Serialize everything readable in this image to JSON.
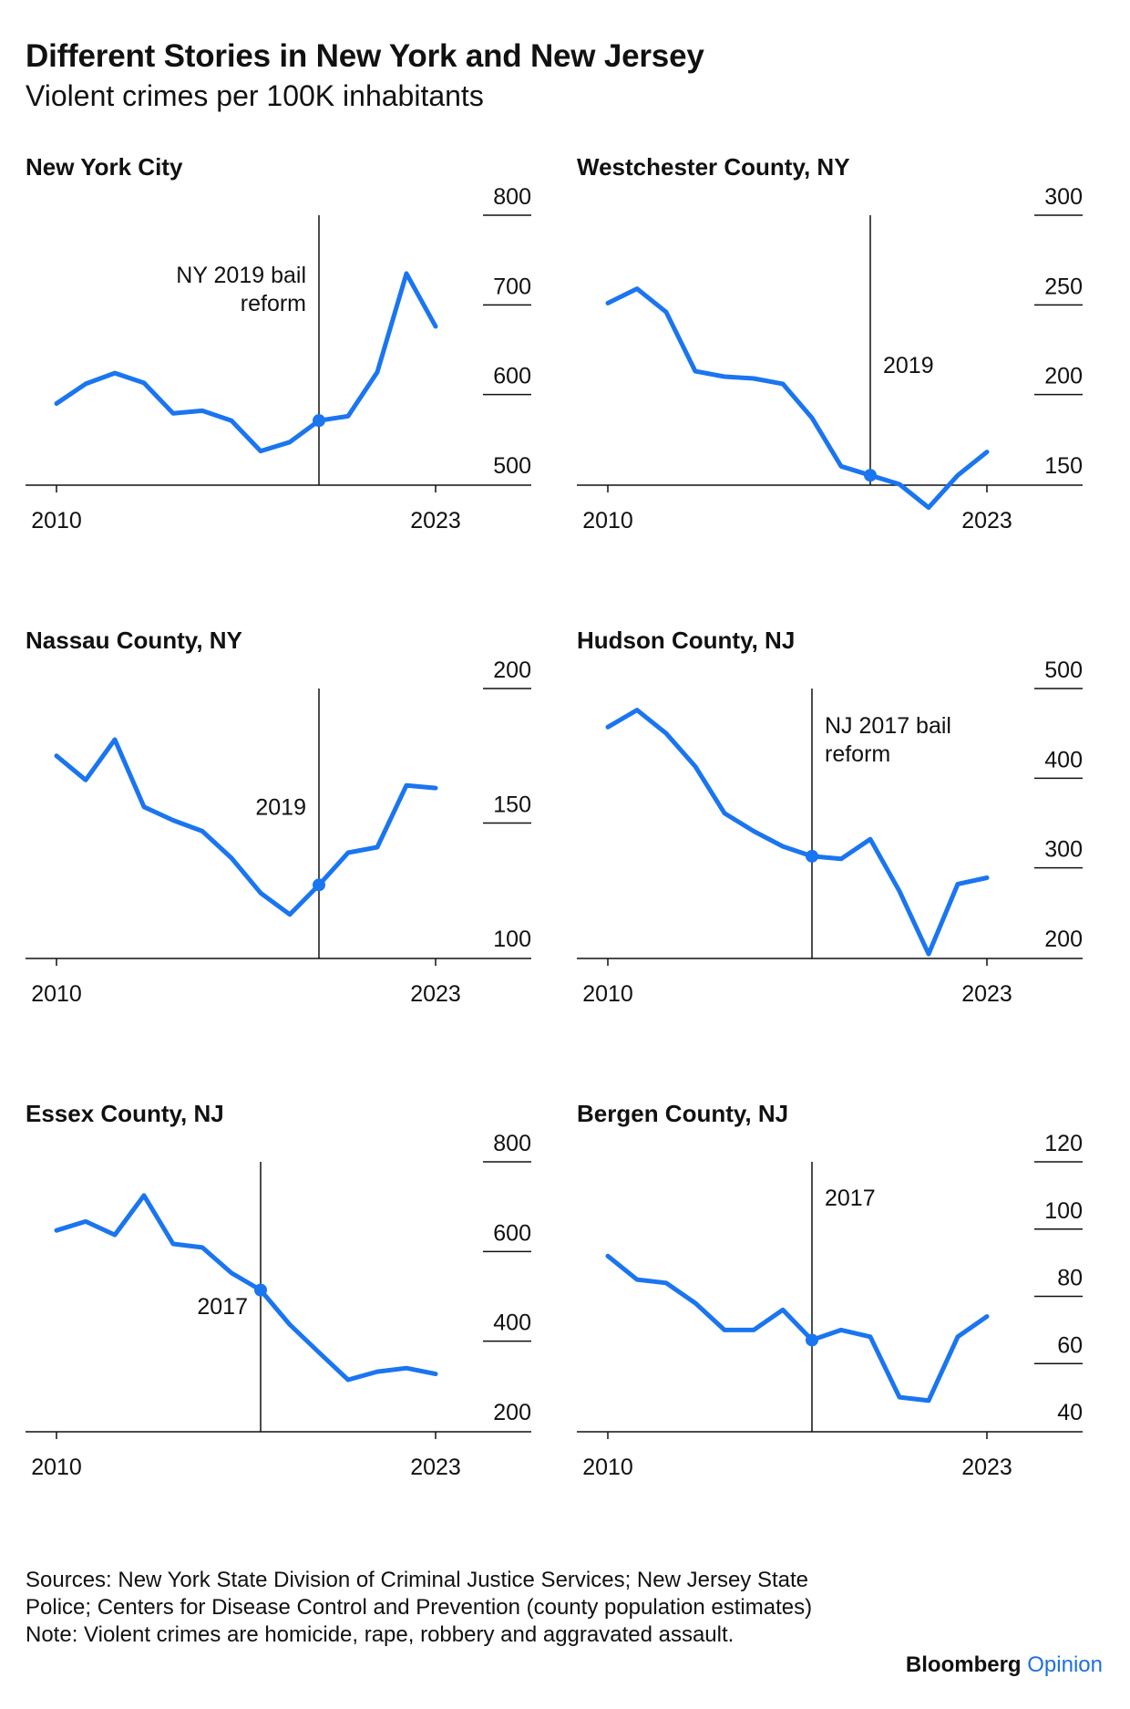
{
  "header": {
    "title": "Different Stories in New York and New Jersey",
    "subtitle": "Violent crimes per 100K inhabitants"
  },
  "footer": {
    "sources": "Sources: New York State Division of Criminal Justice Services; New Jersey State Police; Centers for Disease Control and Prevention (county population estimates)",
    "note": "Note: Violent crimes are homicide, rape, robbery and aggravated assault."
  },
  "brand": {
    "part1": "Bloomberg",
    "part2": "Opinion"
  },
  "colors": {
    "line": "#1a75f0",
    "text": "#111111",
    "rule": "#111111"
  },
  "chart_data": [
    {
      "type": "line",
      "title": "New York City",
      "x": [
        2010,
        2011,
        2012,
        2013,
        2014,
        2015,
        2016,
        2017,
        2018,
        2019,
        2020,
        2021,
        2022,
        2023
      ],
      "values": [
        590,
        612,
        624,
        613,
        579,
        582,
        571,
        537,
        547,
        571,
        576,
        625,
        735,
        676
      ],
      "ylim": [
        500,
        800
      ],
      "yticks": [
        500,
        600,
        700,
        800
      ],
      "xticks": [
        "2010",
        "2023"
      ],
      "annotation": {
        "year": 2019,
        "label": [
          "NY 2019 bail",
          "reform"
        ],
        "side": "left",
        "label_value": 725,
        "marker": true
      }
    },
    {
      "type": "line",
      "title": "Westchester County, NY",
      "x": [
        2010,
        2011,
        2012,
        2013,
        2014,
        2015,
        2016,
        2017,
        2018,
        2019,
        2020,
        2021,
        2022,
        2023
      ],
      "values": [
        251,
        259,
        246,
        213,
        210,
        209,
        206,
        187,
        160,
        155,
        150,
        137,
        155,
        168
      ],
      "ylim": [
        150,
        300
      ],
      "yticks": [
        150,
        200,
        250,
        300
      ],
      "xticks": [
        "2010",
        "2023"
      ],
      "annotation": {
        "year": 2019,
        "label": [
          "2019"
        ],
        "side": "right",
        "label_value": 212,
        "marker": true
      }
    },
    {
      "type": "line",
      "title": "Nassau County, NY",
      "x": [
        2010,
        2011,
        2012,
        2013,
        2014,
        2015,
        2016,
        2017,
        2018,
        2019,
        2020,
        2021,
        2022,
        2023
      ],
      "values": [
        175,
        166,
        181,
        156,
        151,
        147,
        137,
        124,
        116,
        127,
        139,
        141,
        164,
        163
      ],
      "ylim": [
        100,
        200
      ],
      "yticks": [
        100,
        150,
        200
      ],
      "xticks": [
        "2010",
        "2023"
      ],
      "annotation": {
        "year": 2019,
        "label": [
          "2019"
        ],
        "side": "left",
        "label_value": 153,
        "marker": true
      }
    },
    {
      "type": "line",
      "title": "Hudson County, NJ",
      "x": [
        2010,
        2011,
        2012,
        2013,
        2014,
        2015,
        2016,
        2017,
        2018,
        2019,
        2020,
        2021,
        2022,
        2023
      ],
      "values": [
        457,
        476,
        450,
        413,
        361,
        341,
        324,
        313,
        310,
        332,
        274,
        204,
        282,
        289
      ],
      "ylim": [
        200,
        500
      ],
      "yticks": [
        200,
        300,
        400,
        500
      ],
      "xticks": [
        "2010",
        "2023"
      ],
      "annotation": {
        "year": 2017,
        "label": [
          "NJ 2017 bail",
          "reform"
        ],
        "side": "right",
        "label_value": 450,
        "marker": true
      }
    },
    {
      "type": "line",
      "title": "Essex County, NJ",
      "x": [
        2010,
        2011,
        2012,
        2013,
        2014,
        2015,
        2016,
        2017,
        2018,
        2019,
        2020,
        2021,
        2022,
        2023
      ],
      "values": [
        647,
        667,
        637,
        725,
        617,
        609,
        552,
        514,
        437,
        375,
        314,
        332,
        340,
        327
      ],
      "ylim": [
        200,
        800
      ],
      "yticks": [
        200,
        400,
        600,
        800
      ],
      "xticks": [
        "2010",
        "2023"
      ],
      "annotation": {
        "year": 2017,
        "label": [
          "2017"
        ],
        "side": "left",
        "label_value": 460,
        "marker": true
      }
    },
    {
      "type": "line",
      "title": "Bergen County, NJ",
      "x": [
        2010,
        2011,
        2012,
        2013,
        2014,
        2015,
        2016,
        2017,
        2018,
        2019,
        2020,
        2021,
        2022,
        2023
      ],
      "values": [
        92,
        85,
        84,
        78,
        70,
        70,
        76,
        67,
        70,
        68,
        50,
        49,
        68,
        74
      ],
      "ylim": [
        40,
        120
      ],
      "yticks": [
        40,
        60,
        80,
        100,
        120
      ],
      "xticks": [
        "2010",
        "2023"
      ],
      "annotation": {
        "year": 2017,
        "label": [
          "2017"
        ],
        "side": "right",
        "label_value": 107,
        "marker": true
      }
    }
  ]
}
